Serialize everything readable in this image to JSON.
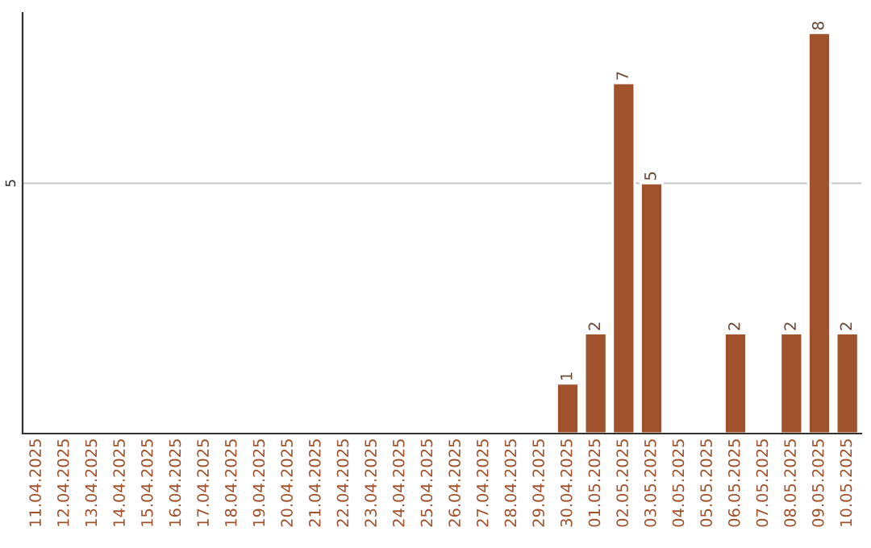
{
  "chart_data": {
    "type": "bar",
    "categories": [
      "11.04.2025",
      "12.04.2025",
      "13.04.2025",
      "14.04.2025",
      "15.04.2025",
      "16.04.2025",
      "17.04.2025",
      "18.04.2025",
      "19.04.2025",
      "20.04.2025",
      "21.04.2025",
      "22.04.2025",
      "23.04.2025",
      "24.04.2025",
      "25.04.2025",
      "26.04.2025",
      "27.04.2025",
      "28.04.2025",
      "29.04.2025",
      "30.04.2025",
      "01.05.2025",
      "02.05.2025",
      "03.05.2025",
      "04.05.2025",
      "05.05.2025",
      "06.05.2025",
      "07.05.2025",
      "08.05.2025",
      "09.05.2025",
      "10.05.2025"
    ],
    "values": [
      null,
      null,
      null,
      null,
      null,
      null,
      null,
      null,
      null,
      null,
      null,
      null,
      null,
      null,
      null,
      null,
      null,
      null,
      null,
      1,
      2,
      7,
      5,
      null,
      null,
      2,
      null,
      2,
      8,
      2
    ],
    "value_labels": [
      null,
      null,
      null,
      null,
      null,
      null,
      null,
      null,
      null,
      null,
      null,
      null,
      null,
      null,
      null,
      null,
      null,
      null,
      null,
      "1",
      "2",
      "7",
      "5",
      null,
      null,
      "2",
      null,
      "2",
      "8",
      "2"
    ],
    "color": "#a0522d",
    "ylim": [
      0,
      8.4
    ],
    "yticks": [
      5
    ],
    "grid": "y",
    "legend": false
  }
}
